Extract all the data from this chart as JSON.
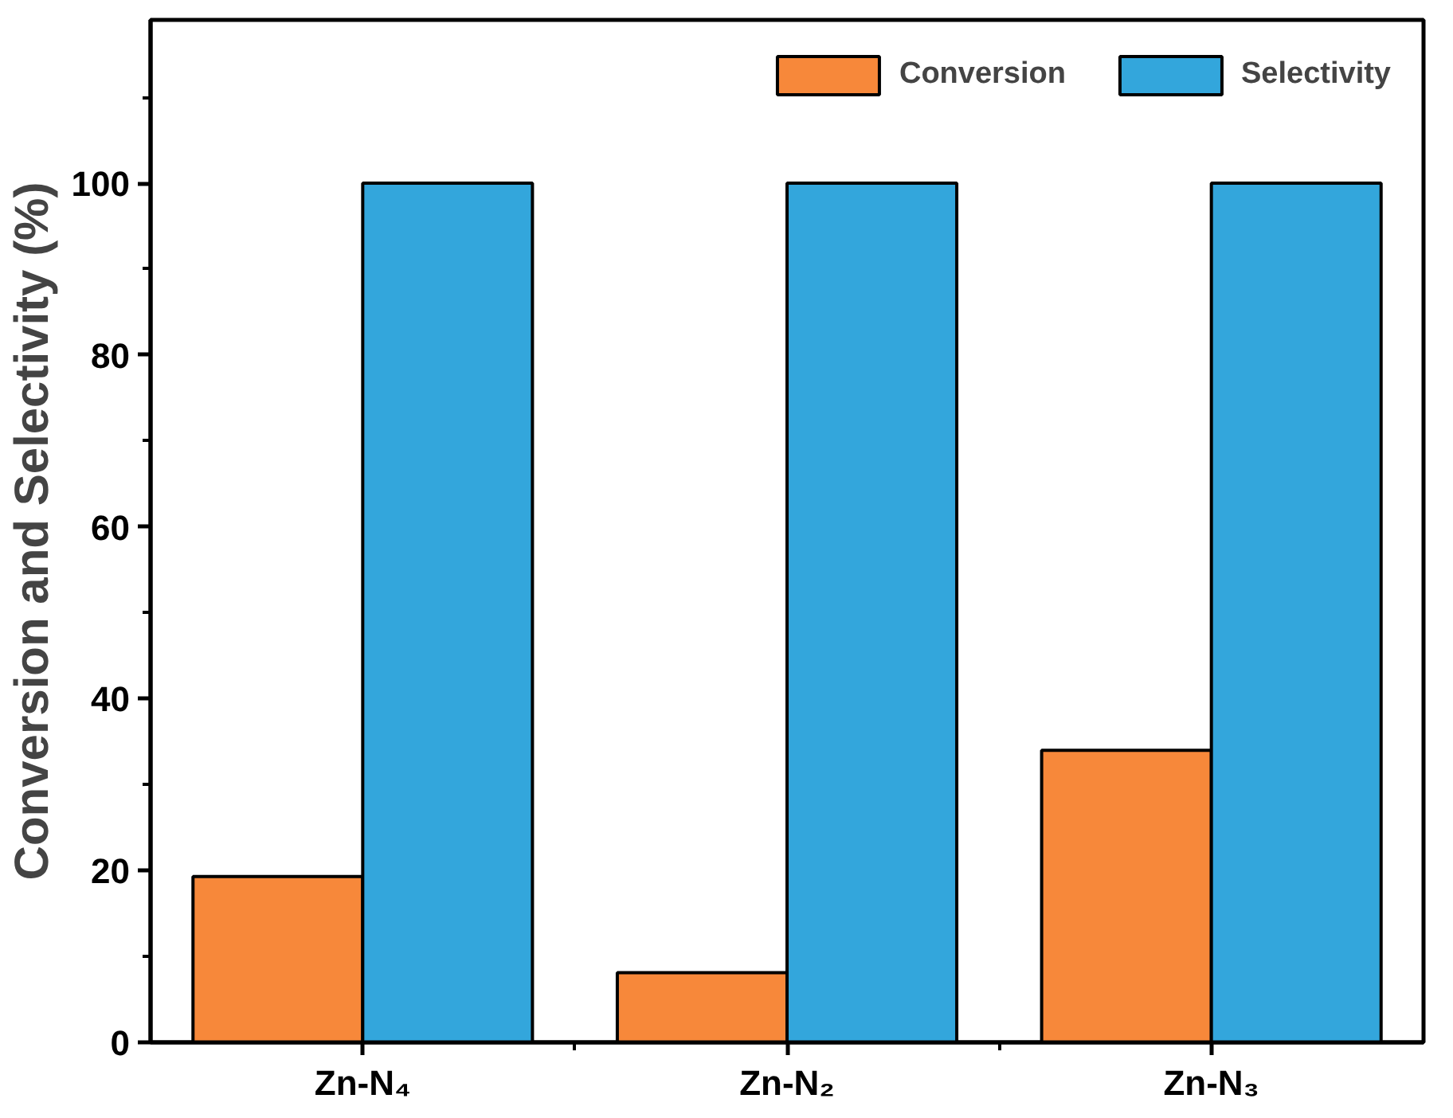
{
  "chart_data": {
    "type": "bar",
    "ylabel": "Conversion and Selectivity (%)",
    "categories": [
      "Zn-N₄",
      "Zn-N₂",
      "Zn-N₃"
    ],
    "series": [
      {
        "name": "Conversion",
        "color": "#f7883a",
        "values": [
          19.3,
          8.1,
          34.0
        ]
      },
      {
        "name": "Selectivity",
        "color": "#33a6dc",
        "values": [
          100,
          100,
          100
        ]
      }
    ],
    "ylim": [
      0,
      119
    ],
    "yticks": [
      0,
      20,
      40,
      60,
      80,
      100
    ],
    "grid": false,
    "legend": "top right"
  }
}
